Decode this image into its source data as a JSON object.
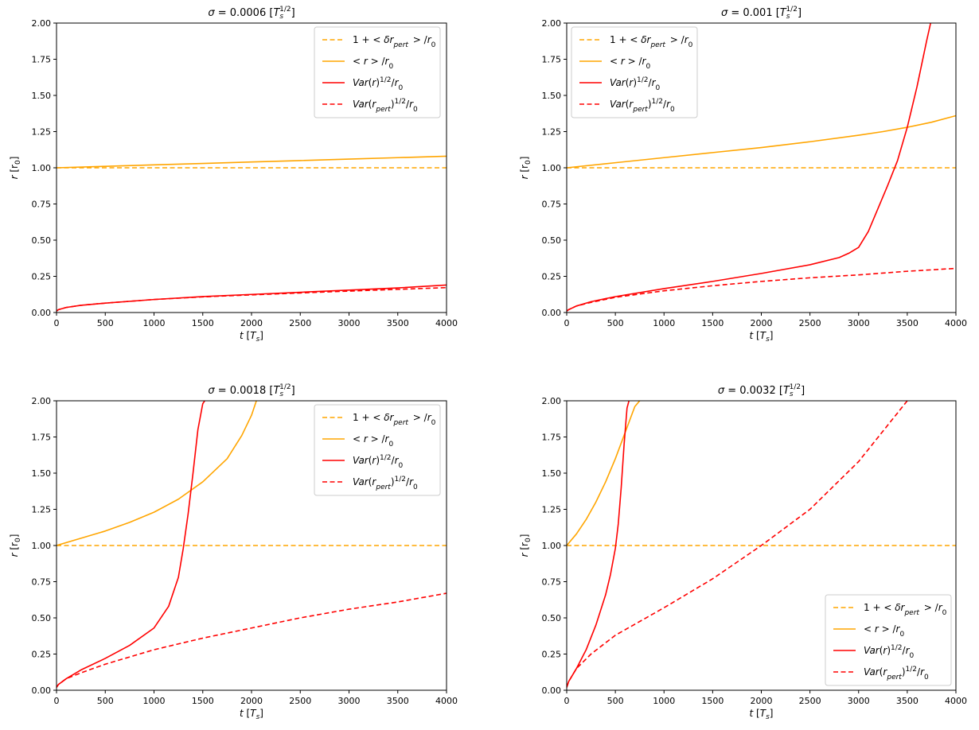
{
  "chart_data": [
    {
      "type": "line",
      "title": {
        "base": "σ = 0.0006 [T",
        "sub": "s",
        "sup": "1/2",
        "end": "]"
      },
      "xlabel": {
        "base": "t [T",
        "sub": "s",
        "end": "]"
      },
      "ylabel": {
        "base": "r [r",
        "sub": "0",
        "end": "]"
      },
      "xlim": [
        0,
        4000
      ],
      "ylim": [
        0,
        2
      ],
      "xticks": [
        0,
        500,
        1000,
        1500,
        2000,
        2500,
        3000,
        3500,
        4000
      ],
      "yticks": [
        0.0,
        0.25,
        0.5,
        0.75,
        1.0,
        1.25,
        1.5,
        1.75,
        2.0
      ],
      "ytick_labels": [
        "0.00",
        "0.25",
        "0.50",
        "0.75",
        "1.00",
        "1.25",
        "1.50",
        "1.75",
        "2.00"
      ],
      "grid": false,
      "legend_position": "upper-right",
      "series": [
        {
          "name": "1 + <δr_pert>/r_0",
          "color": "#FFA500",
          "dash": true,
          "x": [
            0,
            4000
          ],
          "y": [
            1.0,
            1.0
          ]
        },
        {
          "name": "<r>/r_0",
          "color": "#FFA500",
          "dash": false,
          "x": [
            0,
            500,
            1000,
            1500,
            2000,
            2500,
            3000,
            3500,
            4000
          ],
          "y": [
            1.0,
            1.01,
            1.02,
            1.03,
            1.04,
            1.05,
            1.06,
            1.07,
            1.08
          ]
        },
        {
          "name": "Var(r)^1/2/r_0",
          "color": "#FF0000",
          "dash": false,
          "x": [
            0,
            20,
            100,
            250,
            500,
            1000,
            1500,
            2000,
            2500,
            3000,
            3500,
            4000
          ],
          "y": [
            0.01,
            0.02,
            0.035,
            0.05,
            0.065,
            0.09,
            0.11,
            0.125,
            0.14,
            0.155,
            0.17,
            0.19
          ]
        },
        {
          "name": "Var(r_pert)^1/2/r_0",
          "color": "#FF0000",
          "dash": true,
          "x": [
            0,
            20,
            100,
            250,
            500,
            1000,
            1500,
            2000,
            2500,
            3000,
            3500,
            4000
          ],
          "y": [
            0.01,
            0.02,
            0.035,
            0.05,
            0.065,
            0.09,
            0.108,
            0.122,
            0.135,
            0.148,
            0.16,
            0.172
          ]
        }
      ]
    },
    {
      "type": "line",
      "title": {
        "base": "σ = 0.001 [T",
        "sub": "s",
        "sup": "1/2",
        "end": "]"
      },
      "xlabel": {
        "base": "t [T",
        "sub": "s",
        "end": "]"
      },
      "ylabel": {
        "base": "r [r",
        "sub": "0",
        "end": "]"
      },
      "xlim": [
        0,
        4000
      ],
      "ylim": [
        0,
        2
      ],
      "xticks": [
        0,
        500,
        1000,
        1500,
        2000,
        2500,
        3000,
        3500,
        4000
      ],
      "yticks": [
        0.0,
        0.25,
        0.5,
        0.75,
        1.0,
        1.25,
        1.5,
        1.75,
        2.0
      ],
      "ytick_labels": [
        "0.00",
        "0.25",
        "0.50",
        "0.75",
        "1.00",
        "1.25",
        "1.50",
        "1.75",
        "2.00"
      ],
      "grid": false,
      "legend_position": "upper-left",
      "series": [
        {
          "name": "1 + <δr_pert>/r_0",
          "color": "#FFA500",
          "dash": true,
          "x": [
            0,
            4000
          ],
          "y": [
            1.0,
            1.0
          ]
        },
        {
          "name": "<r>/r_0",
          "color": "#FFA500",
          "dash": false,
          "x": [
            0,
            500,
            1000,
            1500,
            2000,
            2500,
            3000,
            3250,
            3500,
            3750,
            4000
          ],
          "y": [
            1.0,
            1.035,
            1.07,
            1.105,
            1.14,
            1.18,
            1.225,
            1.25,
            1.28,
            1.315,
            1.36
          ]
        },
        {
          "name": "Var(r)^1/2/r_0",
          "color": "#FF0000",
          "dash": false,
          "x": [
            0,
            20,
            100,
            250,
            500,
            1000,
            1500,
            2000,
            2500,
            2800,
            2900,
            3000,
            3100,
            3200,
            3300,
            3400,
            3500,
            3600,
            3700,
            3740
          ],
          "y": [
            0.01,
            0.02,
            0.045,
            0.075,
            0.11,
            0.165,
            0.215,
            0.27,
            0.33,
            0.38,
            0.41,
            0.45,
            0.56,
            0.72,
            0.88,
            1.05,
            1.28,
            1.56,
            1.88,
            2.0
          ]
        },
        {
          "name": "Var(r_pert)^1/2/r_0",
          "color": "#FF0000",
          "dash": true,
          "x": [
            0,
            20,
            100,
            250,
            500,
            1000,
            1500,
            2000,
            2500,
            3000,
            3500,
            4000
          ],
          "y": [
            0.01,
            0.02,
            0.045,
            0.07,
            0.105,
            0.15,
            0.185,
            0.215,
            0.24,
            0.26,
            0.285,
            0.305
          ]
        }
      ]
    },
    {
      "type": "line",
      "title": {
        "base": "σ = 0.0018 [T",
        "sub": "s",
        "sup": "1/2",
        "end": "]"
      },
      "xlabel": {
        "base": "t [T",
        "sub": "s",
        "end": "]"
      },
      "ylabel": {
        "base": "r [r",
        "sub": "0",
        "end": "]"
      },
      "xlim": [
        0,
        4000
      ],
      "ylim": [
        0,
        2
      ],
      "xticks": [
        0,
        500,
        1000,
        1500,
        2000,
        2500,
        3000,
        3500,
        4000
      ],
      "yticks": [
        0.0,
        0.25,
        0.5,
        0.75,
        1.0,
        1.25,
        1.5,
        1.75,
        2.0
      ],
      "ytick_labels": [
        "0.00",
        "0.25",
        "0.50",
        "0.75",
        "1.00",
        "1.25",
        "1.50",
        "1.75",
        "2.00"
      ],
      "grid": false,
      "legend_position": "upper-right",
      "series": [
        {
          "name": "1 + <δr_pert>/r_0",
          "color": "#FFA500",
          "dash": true,
          "x": [
            0,
            4000
          ],
          "y": [
            1.0,
            1.0
          ]
        },
        {
          "name": "<r>/r_0",
          "color": "#FFA500",
          "dash": false,
          "x": [
            0,
            250,
            500,
            750,
            1000,
            1250,
            1500,
            1750,
            1900,
            2000,
            2050
          ],
          "y": [
            1.0,
            1.05,
            1.1,
            1.16,
            1.23,
            1.32,
            1.44,
            1.6,
            1.76,
            1.9,
            2.0
          ]
        },
        {
          "name": "Var(r)^1/2/r_0",
          "color": "#FF0000",
          "dash": false,
          "x": [
            0,
            20,
            100,
            250,
            500,
            750,
            1000,
            1150,
            1250,
            1300,
            1350,
            1400,
            1450,
            1500,
            1520
          ],
          "y": [
            0.02,
            0.04,
            0.08,
            0.14,
            0.22,
            0.31,
            0.43,
            0.58,
            0.78,
            0.98,
            1.22,
            1.5,
            1.8,
            1.98,
            2.0
          ]
        },
        {
          "name": "Var(r_pert)^1/2/r_0",
          "color": "#FF0000",
          "dash": true,
          "x": [
            0,
            20,
            100,
            250,
            500,
            1000,
            1500,
            2000,
            2500,
            3000,
            3500,
            4000
          ],
          "y": [
            0.02,
            0.04,
            0.08,
            0.12,
            0.18,
            0.28,
            0.36,
            0.43,
            0.5,
            0.56,
            0.61,
            0.67
          ]
        }
      ]
    },
    {
      "type": "line",
      "title": {
        "base": "σ = 0.0032 [T",
        "sub": "s",
        "sup": "1/2",
        "end": "]"
      },
      "xlabel": {
        "base": "t [T",
        "sub": "s",
        "end": "]"
      },
      "ylabel": {
        "base": "r [r",
        "sub": "0",
        "end": "]"
      },
      "xlim": [
        0,
        4000
      ],
      "ylim": [
        0,
        2
      ],
      "xticks": [
        0,
        500,
        1000,
        1500,
        2000,
        2500,
        3000,
        3500,
        4000
      ],
      "yticks": [
        0.0,
        0.25,
        0.5,
        0.75,
        1.0,
        1.25,
        1.5,
        1.75,
        2.0
      ],
      "ytick_labels": [
        "0.00",
        "0.25",
        "0.50",
        "0.75",
        "1.00",
        "1.25",
        "1.50",
        "1.75",
        "2.00"
      ],
      "grid": false,
      "legend_position": "lower-right",
      "series": [
        {
          "name": "1 + <δr_pert>/r_0",
          "color": "#FFA500",
          "dash": true,
          "x": [
            0,
            4000
          ],
          "y": [
            1.0,
            1.0
          ]
        },
        {
          "name": "<r>/r_0",
          "color": "#FFA500",
          "dash": false,
          "x": [
            0,
            100,
            200,
            300,
            400,
            500,
            600,
            700,
            750
          ],
          "y": [
            1.0,
            1.08,
            1.18,
            1.3,
            1.44,
            1.6,
            1.78,
            1.96,
            2.0
          ]
        },
        {
          "name": "Var(r)^1/2/r_0",
          "color": "#FF0000",
          "dash": false,
          "x": [
            0,
            20,
            100,
            200,
            300,
            400,
            450,
            500,
            530,
            560,
            590,
            620,
            640
          ],
          "y": [
            0.02,
            0.06,
            0.15,
            0.28,
            0.45,
            0.66,
            0.8,
            0.98,
            1.15,
            1.4,
            1.7,
            1.95,
            2.0
          ]
        },
        {
          "name": "Var(r_pert)^1/2/r_0",
          "color": "#FF0000",
          "dash": true,
          "x": [
            0,
            20,
            100,
            250,
            500,
            1000,
            1500,
            2000,
            2500,
            3000,
            3500
          ],
          "y": [
            0.02,
            0.06,
            0.15,
            0.25,
            0.38,
            0.57,
            0.77,
            1.0,
            1.25,
            1.58,
            2.0
          ]
        }
      ]
    }
  ]
}
